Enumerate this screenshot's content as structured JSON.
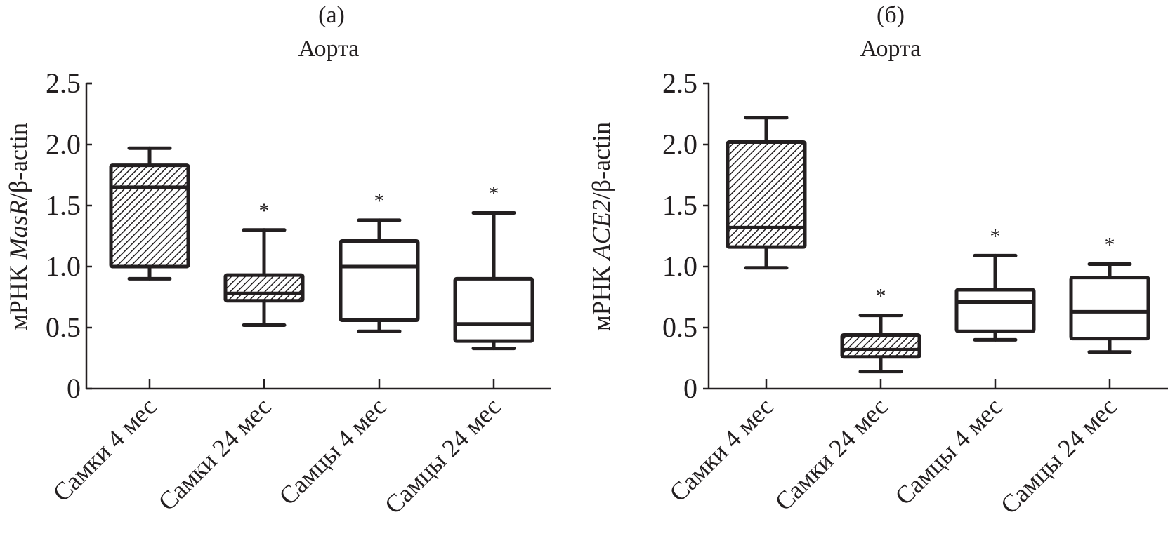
{
  "chart_data": [
    {
      "type": "box",
      "panel_label": "(a)",
      "title": "Аорта",
      "ylabel_prefix": "мРНК ",
      "ylabel_gene": "MasR",
      "ylabel_suffix": "/β-actin",
      "xlabel": "",
      "ylim": [
        0,
        2.5
      ],
      "yticks": [
        0,
        0.5,
        1.0,
        1.5,
        2.0,
        2.5
      ],
      "ytick_labels": [
        "0",
        "0.5",
        "1.0",
        "1.5",
        "2.0",
        "2.5"
      ],
      "grid": false,
      "categories": [
        "Самки 4 мес",
        "Самки 24 мес",
        "Самцы 4 мес",
        "Самцы 24 мес"
      ],
      "boxes": [
        {
          "category": "Самки 4 мес",
          "min": 0.9,
          "q1": 1.0,
          "median": 1.65,
          "q3": 1.83,
          "max": 1.97,
          "hatched": true,
          "significance": ""
        },
        {
          "category": "Самки 24 мес",
          "min": 0.52,
          "q1": 0.72,
          "median": 0.78,
          "q3": 0.93,
          "max": 1.3,
          "hatched": true,
          "significance": "*"
        },
        {
          "category": "Самцы 4 мес",
          "min": 0.47,
          "q1": 0.56,
          "median": 1.0,
          "q3": 1.21,
          "max": 1.38,
          "hatched": false,
          "significance": "*"
        },
        {
          "category": "Самцы 24 мес",
          "min": 0.33,
          "q1": 0.39,
          "median": 0.53,
          "q3": 0.9,
          "max": 1.44,
          "hatched": false,
          "significance": "*"
        }
      ]
    },
    {
      "type": "box",
      "panel_label": "(б)",
      "title": "Аорта",
      "ylabel_prefix": "мРНК ",
      "ylabel_gene": "ACE2",
      "ylabel_suffix": "/β-actin",
      "xlabel": "",
      "ylim": [
        0,
        2.5
      ],
      "yticks": [
        0,
        0.5,
        1.0,
        1.5,
        2.0,
        2.5
      ],
      "ytick_labels": [
        "0",
        "0.5",
        "1.0",
        "1.5",
        "2.0",
        "2.5"
      ],
      "grid": false,
      "categories": [
        "Самки 4 мес",
        "Самки 24 мес",
        "Самцы 4 мес",
        "Самцы 24 мес"
      ],
      "boxes": [
        {
          "category": "Самки 4 мес",
          "min": 0.99,
          "q1": 1.16,
          "median": 1.32,
          "q3": 2.02,
          "max": 2.22,
          "hatched": true,
          "significance": ""
        },
        {
          "category": "Самки 24 мес",
          "min": 0.14,
          "q1": 0.26,
          "median": 0.32,
          "q3": 0.44,
          "max": 0.6,
          "hatched": true,
          "significance": "*"
        },
        {
          "category": "Самцы 4 мес",
          "min": 0.4,
          "q1": 0.47,
          "median": 0.71,
          "q3": 0.81,
          "max": 1.09,
          "hatched": false,
          "significance": "*"
        },
        {
          "category": "Самцы 24 мес",
          "min": 0.3,
          "q1": 0.41,
          "median": 0.63,
          "q3": 0.91,
          "max": 1.02,
          "hatched": false,
          "significance": "*"
        }
      ]
    }
  ],
  "colors": {
    "ink": "#231f20",
    "background": "#ffffff"
  }
}
